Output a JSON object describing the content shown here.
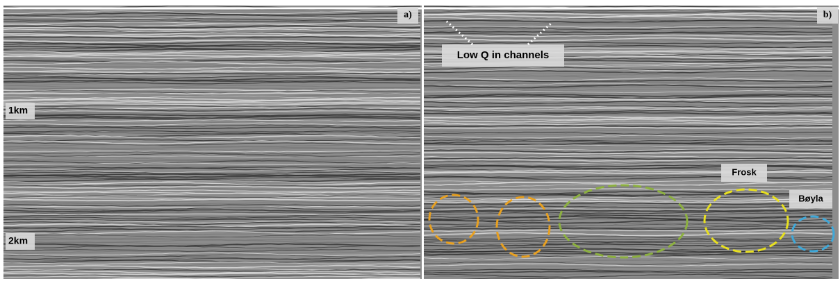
{
  "panels": [
    {
      "label": "a)",
      "annotations": [
        "1km",
        "2km"
      ]
    },
    {
      "label": "b)",
      "annotations": [
        "Low Q in channels",
        "Frosk",
        "Bøyla"
      ]
    }
  ]
}
